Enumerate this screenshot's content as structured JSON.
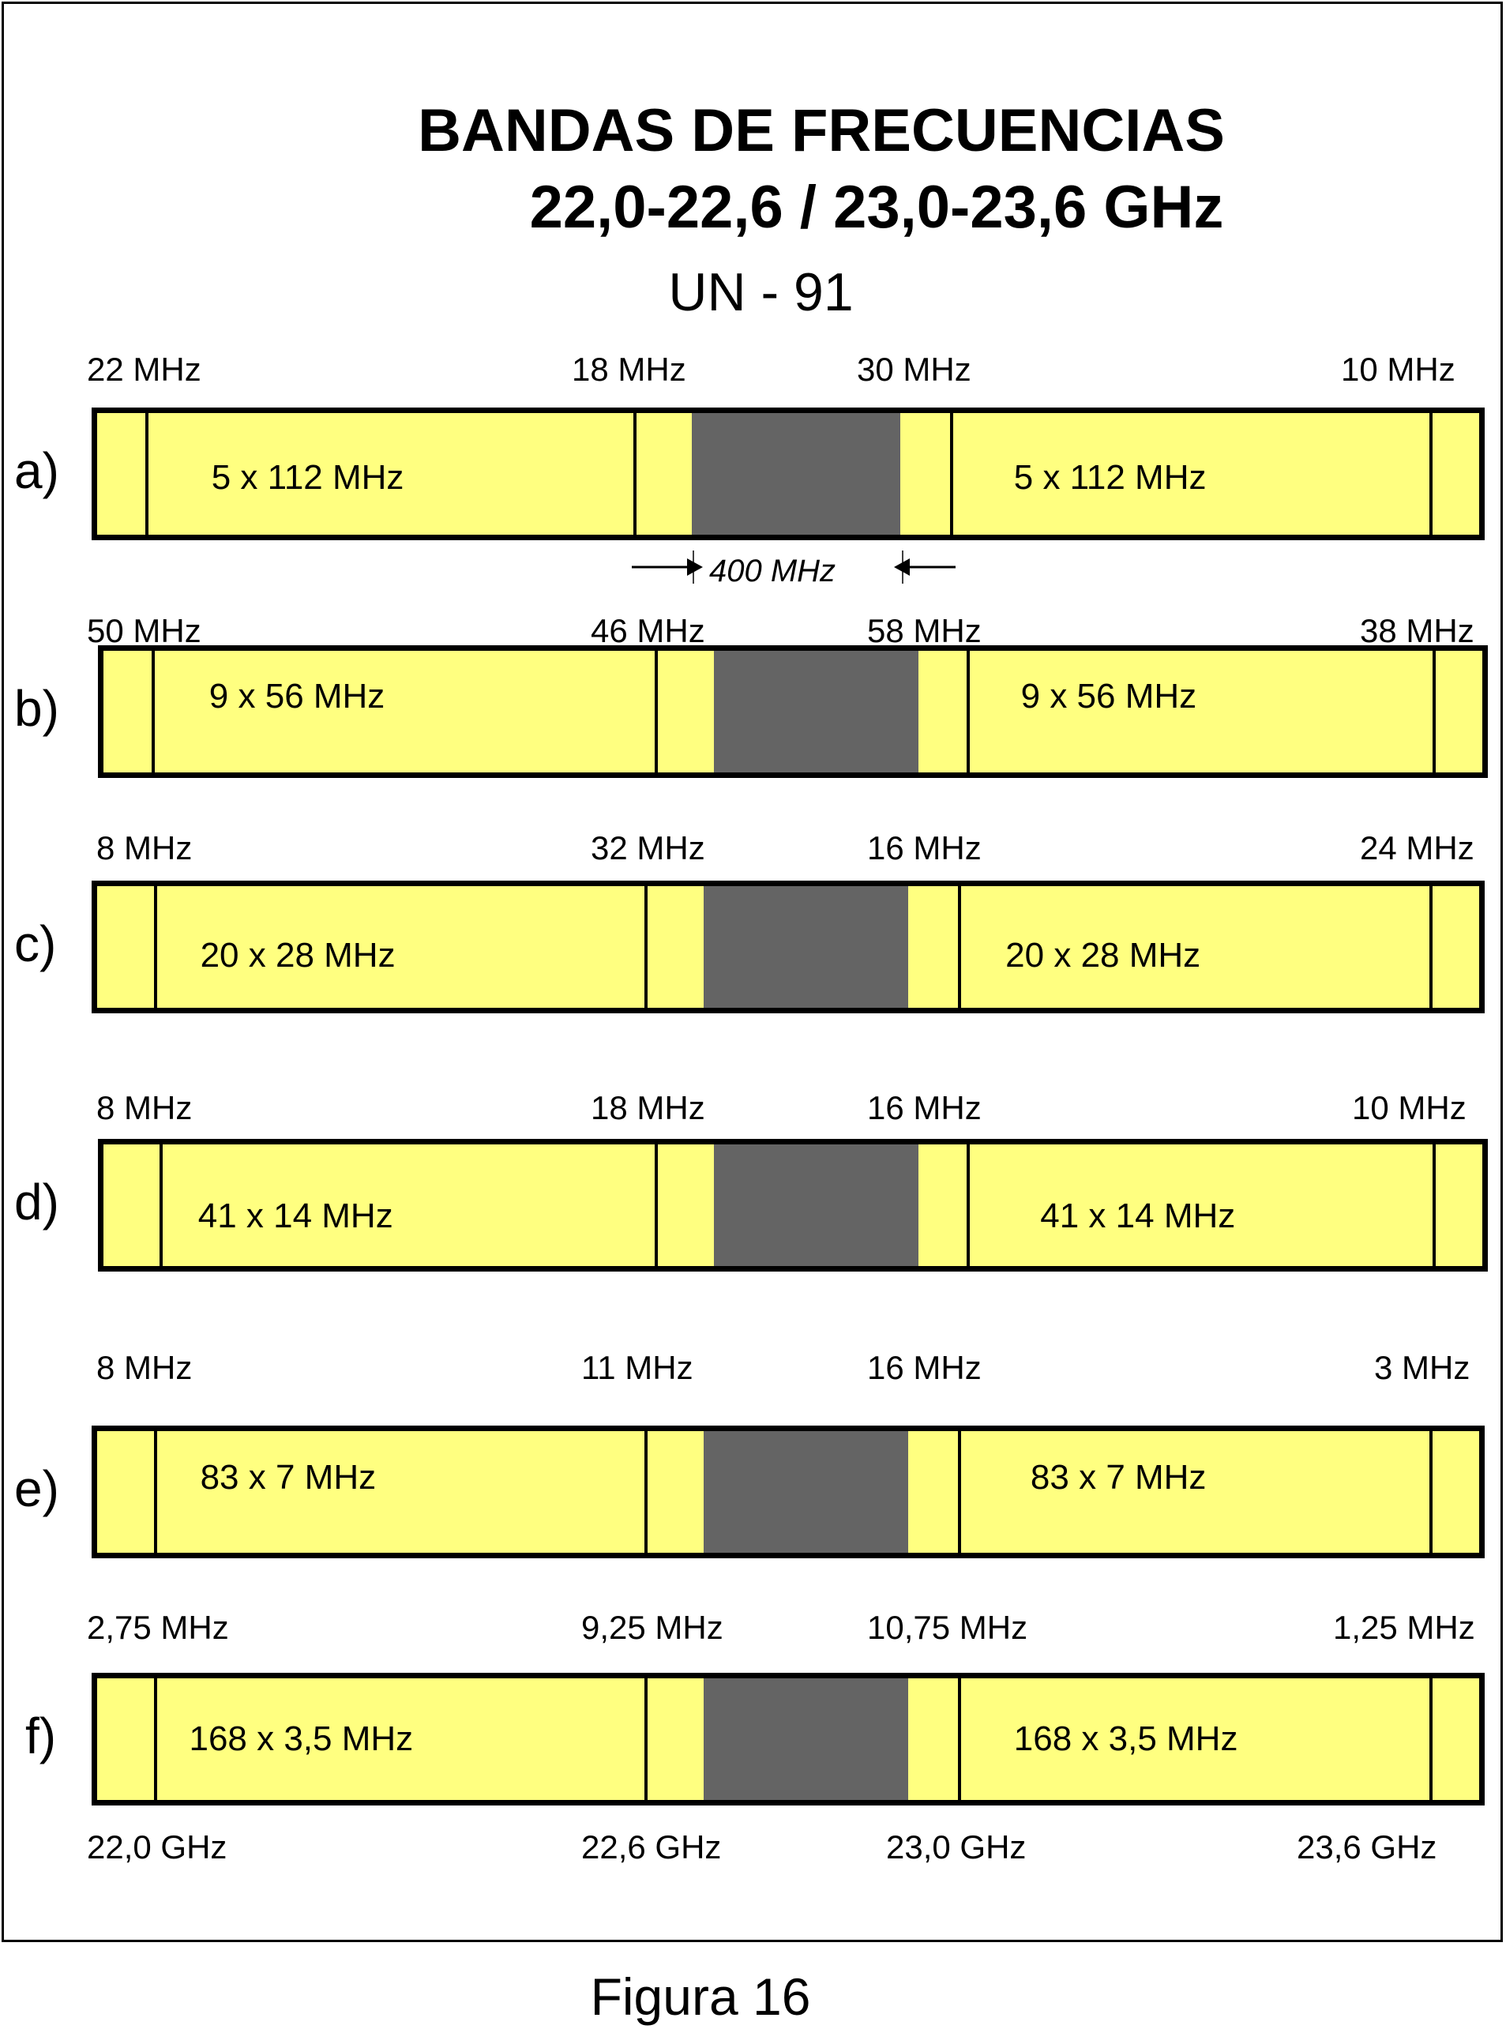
{
  "title": {
    "line1": "BANDAS DE FRECUENCIAS",
    "line2": "22,0-22,6 / 23,0-23,6 GHz",
    "line3": "UN - 91"
  },
  "gap_label": "400 MHz",
  "rows": [
    {
      "id": "a",
      "label": "a)",
      "guards": [
        "22 MHz",
        "18 MHz",
        "30 MHz",
        "10 MHz"
      ],
      "channels": [
        "5 x 112 MHz",
        "5 x 112 MHz"
      ]
    },
    {
      "id": "b",
      "label": "b)",
      "guards": [
        "50 MHz",
        "46 MHz",
        "58 MHz",
        "38 MHz"
      ],
      "channels": [
        "9 x 56 MHz",
        "9 x 56 MHz"
      ]
    },
    {
      "id": "c",
      "label": "c)",
      "guards": [
        "8 MHz",
        "32 MHz",
        "16 MHz",
        "24 MHz"
      ],
      "channels": [
        "20 x 28 MHz",
        "20 x 28 MHz"
      ]
    },
    {
      "id": "d",
      "label": "d)",
      "guards": [
        "8 MHz",
        "18 MHz",
        "16 MHz",
        "10 MHz"
      ],
      "channels": [
        "41 x 14 MHz",
        "41 x 14 MHz"
      ]
    },
    {
      "id": "e",
      "label": "e)",
      "guards": [
        "8 MHz",
        "11 MHz",
        "16 MHz",
        "3 MHz"
      ],
      "channels": [
        "83 x 7 MHz",
        "83 x 7 MHz"
      ]
    },
    {
      "id": "f",
      "label": "f)",
      "guards": [
        "2,75 MHz",
        "9,25 MHz",
        "10,75 MHz",
        "1,25 MHz"
      ],
      "channels": [
        "168 x 3,5 MHz",
        "168 x 3,5 MHz"
      ]
    }
  ],
  "axis": [
    "22,0 GHz",
    "22,6 GHz",
    "23,0 GHz",
    "23,6 GHz"
  ],
  "caption": "Figura 16",
  "colors": {
    "band": "#ffff80",
    "gap": "#646464",
    "border": "#000000"
  }
}
